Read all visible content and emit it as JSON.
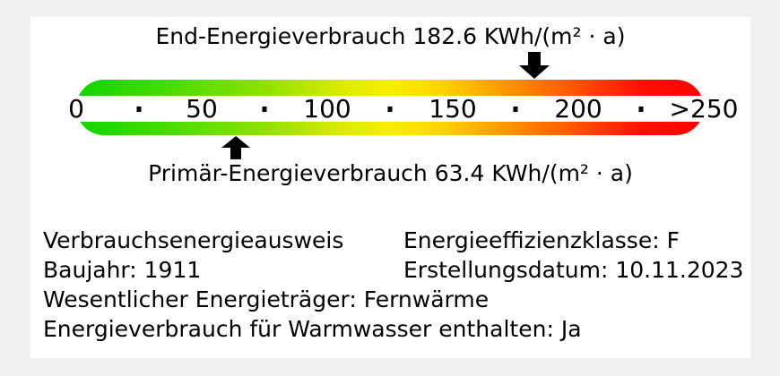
{
  "page": {
    "background_color": "#f0f0ee",
    "panel_color": "#ffffff",
    "text_color": "#000000"
  },
  "chart_data": {
    "type": "gauge",
    "title_top": {
      "label": "End-Energieverbrauch",
      "value": 182.6,
      "unit": "KWh/(m² · a)",
      "display": "End-Energieverbrauch 182.6 KWh/(m² · a)",
      "marker": "down-arrow-above-scale"
    },
    "title_bottom": {
      "label": "Primär-Energieverbrauch",
      "value": 63.4,
      "unit": "KWh/(m² · a)",
      "display": "Primär-Energieverbrauch 63.4 KWh/(m² · a)",
      "marker": "up-arrow-below-scale"
    },
    "axis": {
      "min": 0,
      "max": 250,
      "major_ticks": [
        {
          "value": 0,
          "label": "0"
        },
        {
          "value": 50,
          "label": "50"
        },
        {
          "value": 100,
          "label": "100"
        },
        {
          "value": 150,
          "label": "150"
        },
        {
          "value": 200,
          "label": "200"
        },
        {
          "value": 250,
          "label": ">250"
        }
      ],
      "minor_ticks": [
        25,
        75,
        125,
        175,
        225
      ]
    },
    "gradient_stops": [
      {
        "pos": 0.0,
        "color": "#11d400"
      },
      {
        "pos": 0.14,
        "color": "#44dc00"
      },
      {
        "pos": 0.3,
        "color": "#90e000"
      },
      {
        "pos": 0.42,
        "color": "#d8ea00"
      },
      {
        "pos": 0.5,
        "color": "#f8ee00"
      },
      {
        "pos": 0.58,
        "color": "#ffd400"
      },
      {
        "pos": 0.68,
        "color": "#ff9900"
      },
      {
        "pos": 0.8,
        "color": "#ff5000"
      },
      {
        "pos": 0.9,
        "color": "#ff1000"
      },
      {
        "pos": 1.0,
        "color": "#fb0000"
      }
    ],
    "marker_color": "#000000"
  },
  "info": {
    "rows": [
      {
        "left": "Verbrauchsenergieausweis",
        "right": "Energieeffizienzklasse: F"
      },
      {
        "left": "Baujahr: 1911",
        "right": "Erstellungsdatum: 10.11.2023"
      },
      {
        "left": "Wesentlicher Energieträger: Fernwärme",
        "right": ""
      },
      {
        "left": "Energieverbrauch für Warmwasser enthalten: Ja",
        "right": ""
      }
    ]
  }
}
